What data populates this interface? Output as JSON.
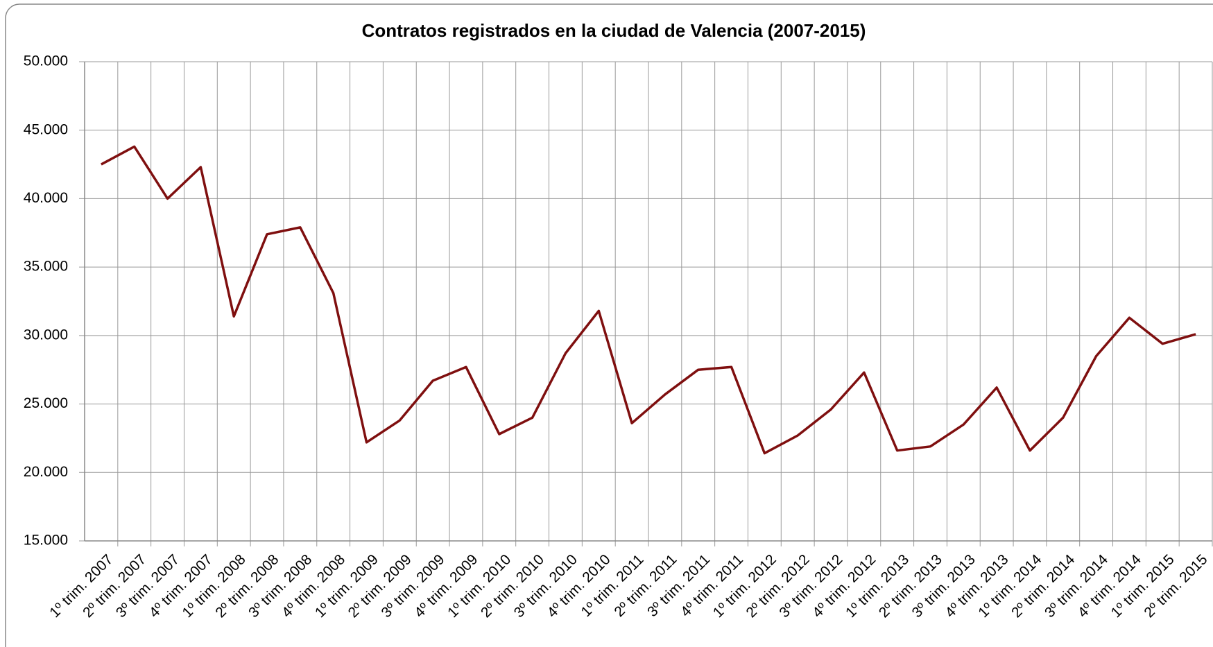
{
  "chart_data": {
    "type": "line",
    "title": "Contratos registrados en la ciudad de Valencia (2007-2015)",
    "categories": [
      "1º trim. 2007",
      "2º trim. 2007",
      "3º trim. 2007",
      "4º trim. 2007",
      "1º trim. 2008",
      "2º trim. 2008",
      "3º trim. 2008",
      "4º trim. 2008",
      "1º trim. 2009",
      "2º trim. 2009",
      "3º trim. 2009",
      "4º trim. 2009",
      "1º trim. 2010",
      "2º trim. 2010",
      "3º trim. 2010",
      "4º trim. 2010",
      "1º trim. 2011",
      "2º trim. 2011",
      "3º trim. 2011",
      "4º trim. 2011",
      "1º trim. 2012",
      "2º trim. 2012",
      "3º trim. 2012",
      "4º trim. 2012",
      "1º trim. 2013",
      "2º trim. 2013",
      "3º trim. 2013",
      "4º trim. 2013",
      "1º trim. 2014",
      "2º trim. 2014",
      "3º trim. 2014",
      "4º trim. 2014",
      "1º trim. 2015",
      "2º trim. 2015"
    ],
    "series": [
      {
        "color": "#7f0f0f",
        "values": [
          42500,
          43800,
          40000,
          42300,
          31400,
          37400,
          37900,
          33100,
          22200,
          23800,
          26700,
          27700,
          22800,
          24000,
          28700,
          31800,
          23600,
          25700,
          27500,
          27700,
          21400,
          22700,
          24600,
          27300,
          21600,
          21900,
          23500,
          26200,
          21600,
          24000,
          28500,
          31300,
          29400,
          30100
        ]
      }
    ],
    "ylim": [
      15000,
      50000
    ],
    "yticks": [
      {
        "value": 15000,
        "label": "15.000"
      },
      {
        "value": 20000,
        "label": "20.000"
      },
      {
        "value": 25000,
        "label": "25.000"
      },
      {
        "value": 30000,
        "label": "30.000"
      },
      {
        "value": 35000,
        "label": "35.000"
      },
      {
        "value": 40000,
        "label": "40.000"
      },
      {
        "value": 45000,
        "label": "45.000"
      },
      {
        "value": 50000,
        "label": "50.000"
      }
    ],
    "grid": true
  }
}
